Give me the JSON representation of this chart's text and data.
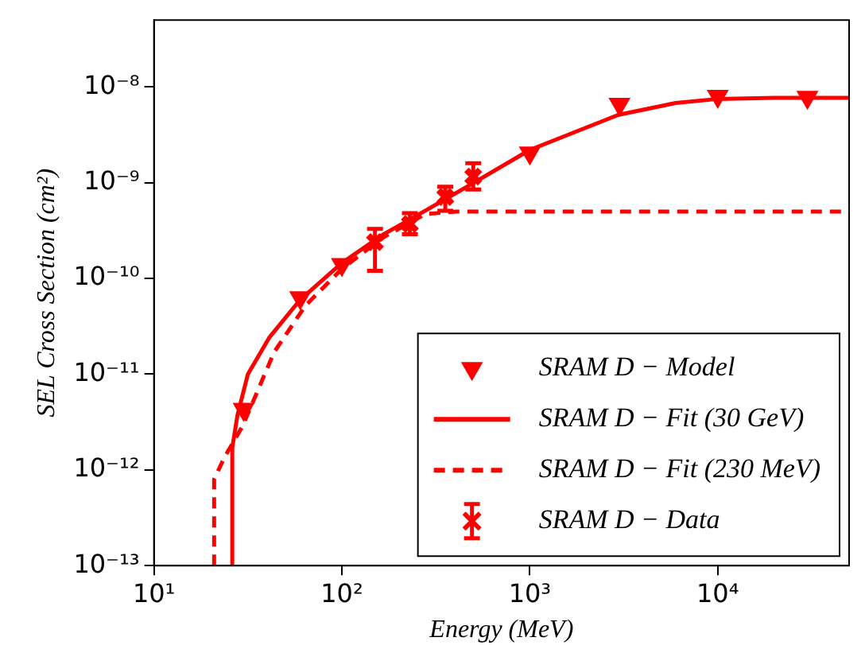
{
  "chart_data": {
    "type": "scatter",
    "xlabel": "Energy (MeV)",
    "ylabel": "SEL Cross Section (cm²)",
    "log": "xy",
    "grid": false,
    "legend": "bottom right",
    "xlim": [
      10,
      50000
    ],
    "ylim": [
      1e-13,
      5e-08
    ],
    "xticks": [
      {
        "value": 10,
        "label": "10¹"
      },
      {
        "value": 100,
        "label": "10²"
      },
      {
        "value": 1000,
        "label": "10³"
      },
      {
        "value": 10000,
        "label": "10⁴"
      }
    ],
    "yticks": [
      {
        "value": 1e-13,
        "label": "10⁻¹³"
      },
      {
        "value": 1e-12,
        "label": "10⁻¹²"
      },
      {
        "value": 1e-11,
        "label": "10⁻¹¹"
      },
      {
        "value": 1e-10,
        "label": "10⁻¹⁰"
      },
      {
        "value": 1e-09,
        "label": "10⁻⁹"
      },
      {
        "value": 1e-08,
        "label": "10⁻⁸"
      }
    ],
    "series": [
      {
        "name": "SRAM D − Model",
        "type": "scatter",
        "marker": "triangle",
        "color": "#ff0000",
        "x": [
          30,
          60,
          100,
          150,
          230,
          350,
          500,
          1000,
          3000,
          10000,
          30000
        ],
        "values": [
          4.3e-12,
          6.3e-11,
          1.4e-10,
          null,
          null,
          null,
          null,
          2.05e-09,
          6.6e-09,
          8e-09,
          7.8e-09
        ]
      },
      {
        "name": "SRAM D − Fit (30 GeV)",
        "type": "line",
        "marker": "none",
        "line_style": "solid",
        "color": "#ff0000",
        "x": [
          26.1,
          26.1,
          27.8,
          31.6,
          41,
          60,
          100,
          167,
          278,
          464,
          1000,
          2950,
          5970,
          10000,
          20000,
          50000
        ],
        "values": [
          1e-13,
          1.7e-12,
          3.7e-12,
          1e-11,
          2.4e-11,
          6e-11,
          1.45e-10,
          2.9e-10,
          5.1e-10,
          9.1e-10,
          2.2e-09,
          5.1e-09,
          6.8e-09,
          7.5e-09,
          7.7e-09,
          7.7e-09
        ]
      },
      {
        "name": "SRAM D − Fit (230 MeV)",
        "type": "line",
        "marker": "none",
        "line_style": "dashed",
        "color": "#ff0000",
        "x": [
          20.9,
          20.9,
          23.7,
          29.7,
          43.6,
          64,
          100,
          167,
          278,
          407,
          1000,
          10000,
          50000
        ],
        "values": [
          1e-13,
          8e-13,
          1.35e-12,
          2.9e-12,
          1.7e-11,
          5.2e-11,
          1.26e-10,
          2.7e-10,
          4.7e-10,
          5e-10,
          5e-10,
          5e-10,
          5e-10
        ]
      },
      {
        "name": "SRAM D − Data",
        "type": "scatter",
        "marker": "cross",
        "color": "#ff0000",
        "x": [
          150,
          230,
          355,
          500
        ],
        "values": [
          2.4e-10,
          3.7e-10,
          7.1e-10,
          1.16e-09
        ],
        "errors": [
          [
            1.2e-10,
            3.3e-10
          ],
          [
            2.9e-10,
            4.8e-10
          ],
          [
            5.1e-10,
            9.1e-10
          ],
          [
            8.5e-10,
            1.6e-09
          ]
        ]
      }
    ]
  }
}
